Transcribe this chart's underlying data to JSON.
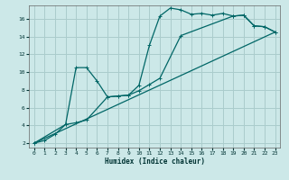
{
  "title": "",
  "xlabel": "Humidex (Indice chaleur)",
  "bg_color": "#cce8e8",
  "grid_color": "#aacccc",
  "line_color": "#006666",
  "xlim": [
    -0.5,
    23.5
  ],
  "ylim": [
    1.5,
    17.5
  ],
  "xticks": [
    0,
    1,
    2,
    3,
    4,
    5,
    6,
    7,
    8,
    9,
    10,
    11,
    12,
    13,
    14,
    15,
    16,
    17,
    18,
    19,
    20,
    21,
    22,
    23
  ],
  "yticks": [
    2,
    4,
    6,
    8,
    10,
    12,
    14,
    16
  ],
  "line1_x": [
    0,
    1,
    2,
    3,
    4,
    5,
    6,
    7,
    8,
    9,
    10,
    11,
    12,
    13,
    14,
    15,
    16,
    17,
    18,
    19,
    20,
    21,
    22,
    23
  ],
  "line1_y": [
    2,
    2.3,
    3.0,
    4.1,
    10.5,
    10.5,
    9.0,
    7.2,
    7.3,
    7.4,
    8.5,
    13.0,
    16.3,
    17.2,
    17.0,
    16.5,
    16.6,
    16.4,
    16.6,
    16.3,
    16.4,
    15.2,
    15.1,
    14.5
  ],
  "line2_x": [
    0,
    3,
    4,
    5,
    7,
    8,
    9,
    10,
    11,
    12,
    14,
    19,
    20,
    21,
    22,
    23
  ],
  "line2_y": [
    2,
    4.1,
    4.3,
    4.6,
    7.2,
    7.3,
    7.4,
    7.9,
    8.6,
    9.3,
    14.1,
    16.3,
    16.4,
    15.2,
    15.1,
    14.5
  ],
  "line3_x": [
    0,
    23
  ],
  "line3_y": [
    2,
    14.5
  ]
}
